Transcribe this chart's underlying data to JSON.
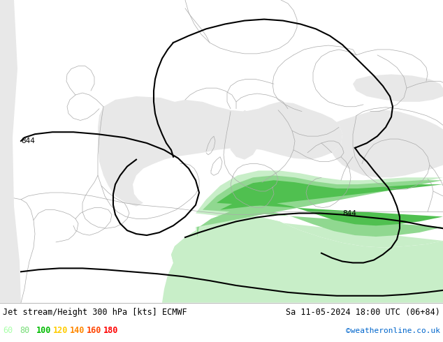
{
  "title_left": "Jet stream/Height 300 hPa [kts] ECMWF",
  "title_right": "Sa 11-05-2024 18:00 UTC (06+84)",
  "credit": "©weatheronline.co.uk",
  "legend_labels": [
    "60",
    "80",
    "100",
    "120",
    "140",
    "160",
    "180"
  ],
  "legend_colors": [
    "#aaffaa",
    "#77dd77",
    "#00bb00",
    "#ffcc00",
    "#ff8800",
    "#ff4400",
    "#ff0000"
  ],
  "land_color": "#c8f0a0",
  "sea_color": "#e8e8e8",
  "border_color": "#aaaaaa",
  "figsize": [
    6.34,
    4.9
  ],
  "dpi": 100,
  "bottom_bar_color": "#ffffff",
  "bottom_bar_height": 0.115,
  "jet_shade_colors": [
    "#c0eec0",
    "#88dd88",
    "#44bb44"
  ],
  "contour_color": "#000000"
}
